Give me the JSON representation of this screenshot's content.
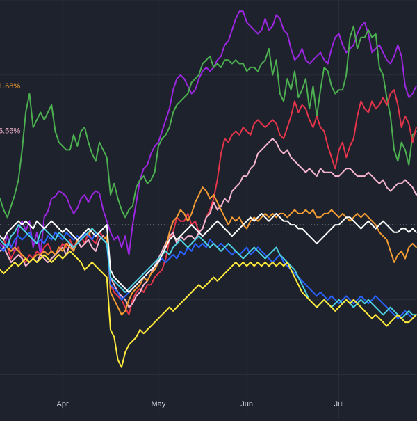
{
  "theme": {
    "background": "#1e222d",
    "grid": "#2a2e39",
    "axis_text": "#d1d4dc",
    "baseline": "#b2b5be"
  },
  "chart_data": {
    "type": "line",
    "x_unit": "trading day",
    "ylim": [
      -22,
      30
    ],
    "baseline": 0,
    "baseline_style": "dotted",
    "x_tick_labels": [
      {
        "x": 17,
        "label": "Apr"
      },
      {
        "x": 43,
        "label": "May"
      },
      {
        "x": 67,
        "label": "Jun"
      },
      {
        "x": 92,
        "label": "Jul"
      }
    ],
    "value_labels": [
      {
        "text": "1.68%",
        "y": 18.6,
        "color": "#f39c34"
      },
      {
        "text": "6.56%",
        "y": 12.6,
        "color": "#f6b6cf"
      }
    ],
    "series": [
      {
        "color": "#9c27e0",
        "values": [
          -2.5,
          -3.0,
          -1.5,
          -3.0,
          -3.5,
          -0.5,
          0.5,
          -0.8,
          0.5,
          -3.0,
          -1.0,
          -4.0,
          1.0,
          1.8,
          3.5,
          3.8,
          4.5,
          4.2,
          3.8,
          2.5,
          1.5,
          2.2,
          3.5,
          4.0,
          3.0,
          4.0,
          4.5,
          4.2,
          2.0,
          0.5,
          -1.0,
          -2.0,
          -1.5,
          -3.0,
          -1.5,
          -4.0,
          0.0,
          3.0,
          6.0,
          7.5,
          8.0,
          9.5,
          10.5,
          11.0,
          12.5,
          14.0,
          15.5,
          18.0,
          19.5,
          20.0,
          19.5,
          18.5,
          17.5,
          18.0,
          19.5,
          20.5,
          21.0,
          20.5,
          21.0,
          22.0,
          22.5,
          24.0,
          24.5,
          26.0,
          27.5,
          28.5,
          28.5,
          27.0,
          26.5,
          26.0,
          25.5,
          26.0,
          27.5,
          26.0,
          26.5,
          28.0,
          27.5,
          26.0,
          25.5,
          23.5,
          22.0,
          22.5,
          23.5,
          22.0,
          21.5,
          22.0,
          22.5,
          23.0,
          22.0,
          21.5,
          23.5,
          25.0,
          25.5,
          24.0,
          23.0,
          23.5,
          24.0,
          25.5,
          26.5,
          27.0,
          25.5,
          23.0,
          23.5,
          24.0,
          23.0,
          22.0,
          21.5,
          22.5,
          24.0,
          22.5,
          18.5,
          17.0,
          17.5,
          18.5
        ]
      },
      {
        "color": "#4caf50",
        "values": [
          3.5,
          2.0,
          1.0,
          2.5,
          4.0,
          6.0,
          10.0,
          15.0,
          17.5,
          13.0,
          14.0,
          15.0,
          14.0,
          15.0,
          16.0,
          12.5,
          11.0,
          10.5,
          10.0,
          10.0,
          12.0,
          10.5,
          12.5,
          13.0,
          11.0,
          9.5,
          8.5,
          11.0,
          10.0,
          9.0,
          4.0,
          5.5,
          3.5,
          2.0,
          1.0,
          2.0,
          2.5,
          5.0,
          6.0,
          6.5,
          5.5,
          6.0,
          7.0,
          10.5,
          11.5,
          12.0,
          13.0,
          15.0,
          16.0,
          16.5,
          17.0,
          17.5,
          19.0,
          19.5,
          20.0,
          21.5,
          22.0,
          22.5,
          21.0,
          21.5,
          21.0,
          22.0,
          22.0,
          21.5,
          22.0,
          21.5,
          21.5,
          20.5,
          21.0,
          21.0,
          20.5,
          21.5,
          22.0,
          23.5,
          20.0,
          22.0,
          17.5,
          16.5,
          19.5,
          18.0,
          20.5,
          17.0,
          18.0,
          19.5,
          15.5,
          18.5,
          14.5,
          18.0,
          21.0,
          20.5,
          18.5,
          17.5,
          18.0,
          18.0,
          20.0,
          25.0,
          26.5,
          23.5,
          25.0,
          25.0,
          26.0,
          25.0,
          25.5,
          21.0,
          20.0,
          17.0,
          14.5,
          10.0,
          8.5,
          11.0,
          10.0,
          8.0,
          12.0,
          12.5
        ]
      },
      {
        "color": "#e5354a",
        "values": [
          -1.5,
          -2.0,
          -3.0,
          -4.5,
          -3.5,
          -3.0,
          -4.5,
          -5.0,
          -4.0,
          -4.5,
          -3.5,
          -4.0,
          -3.0,
          -2.5,
          -3.5,
          -4.0,
          -3.5,
          -2.5,
          -3.0,
          -2.0,
          -3.0,
          -2.0,
          -1.5,
          -2.5,
          -1.0,
          -2.0,
          -2.5,
          -1.0,
          -1.5,
          -2.0,
          -8.0,
          -9.0,
          -9.5,
          -10.0,
          -11.0,
          -12.0,
          -10.0,
          -9.0,
          -8.5,
          -9.0,
          -8.0,
          -8.0,
          -7.0,
          -6.5,
          -6.0,
          -4.5,
          -2.0,
          -1.0,
          1.0,
          0.5,
          0.5,
          1.5,
          0.0,
          0.5,
          -1.0,
          -0.5,
          1.0,
          2.0,
          3.5,
          6.0,
          9.5,
          11.5,
          11.0,
          12.0,
          12.5,
          12.0,
          13.0,
          12.5,
          12.0,
          13.5,
          14.0,
          13.5,
          13.0,
          13.5,
          14.0,
          13.5,
          12.0,
          11.5,
          13.0,
          14.5,
          16.5,
          15.0,
          16.0,
          15.5,
          14.0,
          13.0,
          14.5,
          13.0,
          12.5,
          10.5,
          9.0,
          7.5,
          10.0,
          11.0,
          9.0,
          10.5,
          11.5,
          14.5,
          16.5,
          15.5,
          15.0,
          16.5,
          15.5,
          16.0,
          17.0,
          16.0,
          17.5,
          18.0,
          16.0,
          13.0,
          14.5,
          13.5,
          11.0,
          13.0
        ]
      },
      {
        "color": "#f6b6cf",
        "values": [
          -3.5,
          -3.0,
          -4.0,
          -5.0,
          -4.5,
          -4.0,
          -4.5,
          -5.5,
          -5.0,
          -4.5,
          -5.0,
          -4.0,
          -4.5,
          -5.0,
          -4.5,
          -4.0,
          -3.5,
          -3.0,
          -4.0,
          -2.5,
          -3.5,
          -2.0,
          -3.0,
          -2.5,
          -2.0,
          -3.0,
          -3.5,
          -2.0,
          -1.5,
          -2.0,
          -7.0,
          -8.0,
          -9.0,
          -9.5,
          -10.0,
          -11.0,
          -10.5,
          -9.5,
          -9.0,
          -8.0,
          -7.5,
          -6.5,
          -5.5,
          -4.5,
          -3.5,
          -2.5,
          -1.5,
          -1.0,
          -2.5,
          -1.5,
          -2.0,
          -1.5,
          -1.5,
          -2.0,
          -1.0,
          -0.5,
          1.0,
          1.5,
          3.0,
          2.0,
          2.5,
          3.5,
          3.0,
          4.5,
          5.0,
          5.5,
          6.5,
          6.5,
          7.5,
          8.0,
          9.5,
          10.0,
          10.5,
          11.0,
          11.5,
          11.0,
          10.0,
          9.5,
          10.0,
          9.0,
          8.5,
          8.0,
          7.5,
          7.0,
          7.5,
          7.0,
          6.5,
          7.5,
          7.0,
          7.0,
          7.0,
          6.5,
          6.5,
          7.0,
          7.5,
          7.5,
          7.0,
          6.5,
          6.5,
          6.5,
          7.0,
          6.5,
          6.0,
          5.5,
          6.0,
          5.0,
          4.5,
          5.0,
          5.5,
          5.5,
          6.0,
          5.5,
          5.0,
          4.0,
          4.5,
          4.5
        ]
      },
      {
        "color": "#f39c34",
        "values": [
          -2.0,
          -2.5,
          -3.0,
          -3.5,
          -3.0,
          -3.5,
          -4.0,
          -4.5,
          -5.0,
          -4.5,
          -4.0,
          -4.0,
          -3.5,
          -4.0,
          -3.5,
          -4.0,
          -3.0,
          -3.5,
          -2.5,
          -3.0,
          -3.5,
          -2.0,
          -1.5,
          -1.0,
          -1.5,
          -0.5,
          -1.0,
          -1.5,
          -2.0,
          -1.5,
          -9.0,
          -10.0,
          -11.0,
          -12.0,
          -11.5,
          -10.0,
          -9.0,
          -8.5,
          -8.0,
          -7.0,
          -7.5,
          -6.5,
          -6.0,
          -5.0,
          -4.0,
          -3.0,
          -1.0,
          0.5,
          1.0,
          2.0,
          1.5,
          0.5,
          1.5,
          3.0,
          4.0,
          5.0,
          4.5,
          3.5,
          4.0,
          3.0,
          2.0,
          1.0,
          0.0,
          1.0,
          0.5,
          1.0,
          0.0,
          -0.5,
          0.5,
          1.0,
          0.5,
          1.0,
          1.5,
          1.0,
          1.5,
          1.0,
          1.5,
          1.5,
          1.0,
          1.5,
          2.0,
          1.5,
          1.5,
          2.0,
          1.5,
          2.0,
          1.0,
          1.0,
          1.5,
          1.5,
          2.0,
          1.5,
          1.0,
          1.5,
          1.0,
          0.5,
          1.0,
          1.5,
          1.0,
          1.5,
          1.0,
          0.5,
          0.0,
          -1.0,
          -1.5,
          -2.0,
          -3.5,
          -5.0,
          -4.0,
          -3.5,
          -4.5,
          -3.0,
          -2.5,
          -3.0
        ]
      },
      {
        "color": "#2962ff",
        "values": [
          -3.0,
          -3.5,
          -2.5,
          -3.0,
          -2.0,
          -1.5,
          -2.0,
          -1.5,
          -1.0,
          -2.0,
          -2.5,
          -2.0,
          -2.5,
          -1.5,
          -2.0,
          -1.0,
          -1.5,
          -2.0,
          -1.0,
          -1.5,
          -2.0,
          -1.5,
          -2.0,
          -1.0,
          -1.5,
          -2.0,
          -1.0,
          -1.5,
          -2.0,
          -2.5,
          -8.0,
          -8.5,
          -9.0,
          -10.0,
          -9.5,
          -9.0,
          -8.5,
          -8.0,
          -7.5,
          -7.0,
          -6.5,
          -6.0,
          -5.5,
          -5.0,
          -4.5,
          -5.0,
          -4.5,
          -4.0,
          -4.5,
          -3.5,
          -4.0,
          -3.0,
          -3.5,
          -2.5,
          -3.0,
          -2.5,
          -3.0,
          -2.0,
          -2.5,
          -3.0,
          -2.5,
          -3.0,
          -3.5,
          -4.0,
          -3.5,
          -4.0,
          -3.5,
          -3.0,
          -4.0,
          -3.5,
          -3.0,
          -3.5,
          -4.0,
          -4.5,
          -5.0,
          -4.5,
          -4.0,
          -5.0,
          -5.5,
          -6.0,
          -6.5,
          -7.0,
          -7.5,
          -8.0,
          -8.5,
          -9.0,
          -9.5,
          -9.0,
          -9.5,
          -10.0,
          -9.5,
          -10.0,
          -10.5,
          -10.0,
          -9.5,
          -10.0,
          -10.5,
          -10.0,
          -9.5,
          -10.0,
          -10.5,
          -10.0,
          -9.5,
          -10.0,
          -10.5,
          -11.0,
          -11.5,
          -12.0,
          -12.5,
          -12.0,
          -11.5,
          -12.0,
          -12.5,
          -12.0
        ]
      },
      {
        "color": "#4dd0e1",
        "values": [
          -2.0,
          -2.5,
          -3.0,
          -1.5,
          -1.0,
          0.0,
          -0.5,
          -1.0,
          -1.5,
          -2.0,
          -2.5,
          -1.0,
          -0.5,
          -1.0,
          -1.5,
          -2.0,
          -1.0,
          -1.5,
          -2.0,
          -2.5,
          -3.0,
          -2.5,
          -2.0,
          -1.5,
          -1.0,
          -0.5,
          -1.0,
          -1.5,
          -2.0,
          -2.5,
          -7.0,
          -7.5,
          -8.0,
          -8.5,
          -9.0,
          -8.5,
          -8.0,
          -7.5,
          -7.0,
          -6.5,
          -6.0,
          -5.5,
          -5.0,
          -4.5,
          -4.0,
          -3.5,
          -4.0,
          -3.0,
          -2.5,
          -2.0,
          -2.5,
          -3.0,
          -2.5,
          -2.0,
          -1.5,
          -2.0,
          -2.5,
          -3.0,
          -2.5,
          -3.0,
          -3.5,
          -3.0,
          -2.5,
          -3.0,
          -3.5,
          -4.0,
          -4.5,
          -4.0,
          -3.5,
          -3.0,
          -3.5,
          -4.0,
          -4.5,
          -4.0,
          -3.5,
          -3.0,
          -4.0,
          -4.5,
          -5.0,
          -5.5,
          -6.0,
          -7.0,
          -8.0,
          -9.0,
          -10.0,
          -10.5,
          -11.0,
          -10.5,
          -10.0,
          -10.5,
          -11.0,
          -10.5,
          -10.0,
          -10.5,
          -10.0,
          -10.5,
          -11.0,
          -10.5,
          -10.0,
          -10.5,
          -10.0,
          -10.5,
          -11.0,
          -11.5,
          -12.0,
          -11.5,
          -11.0,
          -11.5,
          -12.0,
          -12.5,
          -12.0,
          -11.5,
          -12.0,
          -12.0
        ]
      },
      {
        "color": "#ffffff",
        "values": [
          -1.5,
          -2.0,
          -1.0,
          -0.5,
          0.0,
          0.5,
          0.0,
          0.5,
          0.0,
          -0.5,
          0.5,
          0.0,
          -0.5,
          0.0,
          0.5,
          0.0,
          -0.5,
          -1.0,
          -0.5,
          -1.0,
          -1.5,
          -2.0,
          -1.5,
          -1.0,
          -0.5,
          -1.0,
          -1.5,
          -1.0,
          -0.5,
          0.0,
          -6.0,
          -7.0,
          -7.5,
          -8.0,
          -8.5,
          -9.0,
          -8.5,
          -8.0,
          -7.5,
          -7.0,
          -6.5,
          -6.0,
          -5.5,
          -5.0,
          -4.0,
          -3.0,
          -2.0,
          -1.5,
          -2.0,
          -1.5,
          -1.0,
          -0.5,
          0.0,
          -0.5,
          -1.0,
          -1.5,
          -1.0,
          -0.5,
          0.0,
          0.5,
          0.0,
          -0.5,
          -1.0,
          -1.5,
          -1.0,
          -0.5,
          0.0,
          0.5,
          1.0,
          0.5,
          1.0,
          1.5,
          1.0,
          0.5,
          1.0,
          1.5,
          1.0,
          0.5,
          0.5,
          0.0,
          0.0,
          -0.5,
          -0.5,
          -1.0,
          -1.5,
          -2.0,
          -2.5,
          -2.0,
          -1.5,
          -1.0,
          -0.5,
          0.0,
          0.0,
          0.5,
          1.0,
          1.0,
          0.5,
          0.0,
          -0.5,
          0.0,
          0.5,
          0.0,
          -0.5,
          0.0,
          0.5,
          0.0,
          -0.5,
          -1.0,
          -1.0,
          -0.5,
          -0.5,
          -1.0,
          -0.5,
          -1.0
        ]
      },
      {
        "color": "#ffeb3b",
        "values": [
          -6.0,
          -6.5,
          -6.0,
          -5.5,
          -5.0,
          -5.5,
          -5.0,
          -4.5,
          -5.0,
          -4.5,
          -5.0,
          -4.5,
          -4.0,
          -4.5,
          -5.0,
          -4.5,
          -4.0,
          -4.5,
          -4.0,
          -3.5,
          -4.0,
          -4.5,
          -5.0,
          -6.0,
          -5.5,
          -5.0,
          -5.5,
          -6.0,
          -6.5,
          -7.0,
          -14.0,
          -15.0,
          -18.0,
          -19.0,
          -17.0,
          -16.0,
          -15.5,
          -15.0,
          -14.0,
          -14.5,
          -14.0,
          -13.5,
          -13.0,
          -12.5,
          -12.0,
          -11.5,
          -11.0,
          -11.5,
          -11.0,
          -10.5,
          -10.0,
          -9.5,
          -9.0,
          -8.5,
          -8.0,
          -8.5,
          -8.0,
          -7.5,
          -7.0,
          -7.5,
          -7.0,
          -6.5,
          -6.0,
          -5.5,
          -5.0,
          -5.5,
          -5.0,
          -5.5,
          -5.0,
          -5.5,
          -5.0,
          -5.5,
          -5.0,
          -5.5,
          -5.0,
          -5.5,
          -5.0,
          -5.5,
          -5.0,
          -6.0,
          -7.0,
          -8.0,
          -9.0,
          -9.5,
          -10.0,
          -10.5,
          -11.0,
          -10.5,
          -10.0,
          -10.5,
          -11.0,
          -11.5,
          -11.0,
          -10.5,
          -10.0,
          -10.5,
          -10.0,
          -10.5,
          -11.0,
          -11.5,
          -12.0,
          -12.5,
          -12.0,
          -12.5,
          -13.0,
          -13.5,
          -13.0,
          -12.5,
          -12.0,
          -12.5,
          -13.0,
          -13.0,
          -12.5,
          -12.0
        ]
      }
    ]
  }
}
